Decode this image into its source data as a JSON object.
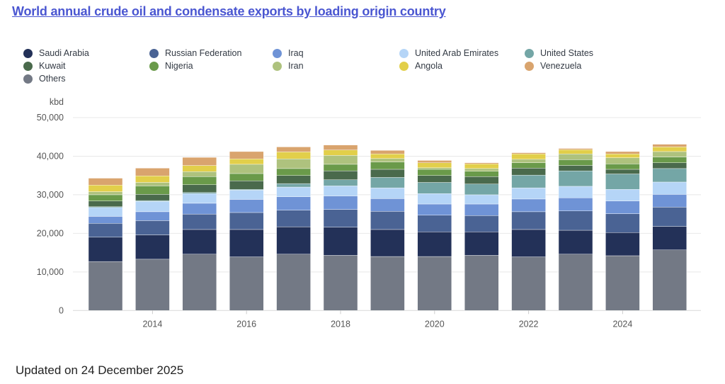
{
  "header": {
    "title": "World annual crude oil and condensate exports by loading origin country"
  },
  "footer": {
    "updated": "Updated on 24 December 2025"
  },
  "chart_data": {
    "type": "bar",
    "stacked": true,
    "title": "World annual crude oil and condensate exports by loading origin country",
    "xlabel": "",
    "ylabel": "kbd",
    "ylim": [
      0,
      50000
    ],
    "yticks": [
      0,
      10000,
      20000,
      30000,
      40000,
      50000
    ],
    "ytick_labels": [
      "0",
      "10,000",
      "20,000",
      "30,000",
      "40,000",
      "50,000"
    ],
    "grid": true,
    "legend_position": "top-left",
    "categories": [
      "2013",
      "2014",
      "2015",
      "2016",
      "2017",
      "2018",
      "2019",
      "2020",
      "2021",
      "2022",
      "2023",
      "2024",
      "2025"
    ],
    "xtick_labels": [
      "",
      "2014",
      "",
      "2016",
      "",
      "2018",
      "",
      "2020",
      "",
      "2022",
      "",
      "2024",
      ""
    ],
    "legend_order": [
      "Saudi Arabia",
      "Russian Federation",
      "Iraq",
      "United Arab Emirates",
      "United States",
      "Kuwait",
      "Nigeria",
      "Iran",
      "Angola",
      "Venezuela",
      "Others"
    ],
    "series": [
      {
        "name": "Others",
        "color": "#737985",
        "values": [
          12700,
          13300,
          14600,
          13900,
          14600,
          14300,
          14000,
          14000,
          14300,
          13900,
          14600,
          14200,
          15700
        ]
      },
      {
        "name": "Saudi Arabia",
        "color": "#233158",
        "values": [
          6300,
          6300,
          6400,
          7100,
          7100,
          7300,
          7000,
          6400,
          6100,
          7100,
          6200,
          6000,
          6100
        ]
      },
      {
        "name": "Russian Federation",
        "color": "#4a6394",
        "values": [
          3600,
          3700,
          4000,
          4400,
          4300,
          4600,
          4700,
          4300,
          4200,
          4600,
          5000,
          4900,
          5000
        ]
      },
      {
        "name": "Iraq",
        "color": "#6f93d6",
        "values": [
          1800,
          2300,
          2800,
          3400,
          3500,
          3500,
          3300,
          2900,
          3000,
          3300,
          3400,
          3300,
          3300
        ]
      },
      {
        "name": "United Arab Emirates",
        "color": "#b5d5f7",
        "values": [
          2300,
          2700,
          2500,
          2400,
          2500,
          2600,
          2800,
          2700,
          2400,
          2900,
          3000,
          3000,
          3200
        ]
      },
      {
        "name": "United States",
        "color": "#74a6a6",
        "values": [
          200,
          200,
          300,
          200,
          900,
          1600,
          2700,
          2900,
          2800,
          3300,
          4000,
          4000,
          3500
        ]
      },
      {
        "name": "Kuwait",
        "color": "#4a6a4c",
        "values": [
          1500,
          1600,
          2000,
          2200,
          2100,
          2300,
          2100,
          1800,
          1900,
          1800,
          1400,
          1200,
          1500
        ]
      },
      {
        "name": "Nigeria",
        "color": "#6a9a4a",
        "values": [
          1600,
          2200,
          2100,
          1900,
          1800,
          1700,
          1900,
          1600,
          1400,
          1400,
          1500,
          1400,
          1500
        ]
      },
      {
        "name": "Iran",
        "color": "#aec27e",
        "values": [
          800,
          900,
          1300,
          2400,
          2500,
          2300,
          900,
          400,
          700,
          900,
          1500,
          1600,
          1400
        ]
      },
      {
        "name": "Angola",
        "color": "#e2cf4a",
        "values": [
          1700,
          1700,
          1600,
          1400,
          1800,
          1400,
          1200,
          1300,
          1200,
          1400,
          1100,
          1000,
          1200
        ]
      },
      {
        "name": "Venezuela",
        "color": "#d9a46e",
        "values": [
          1800,
          2000,
          2100,
          1900,
          1300,
          1300,
          900,
          600,
          300,
          300,
          300,
          600,
          700
        ]
      }
    ]
  }
}
